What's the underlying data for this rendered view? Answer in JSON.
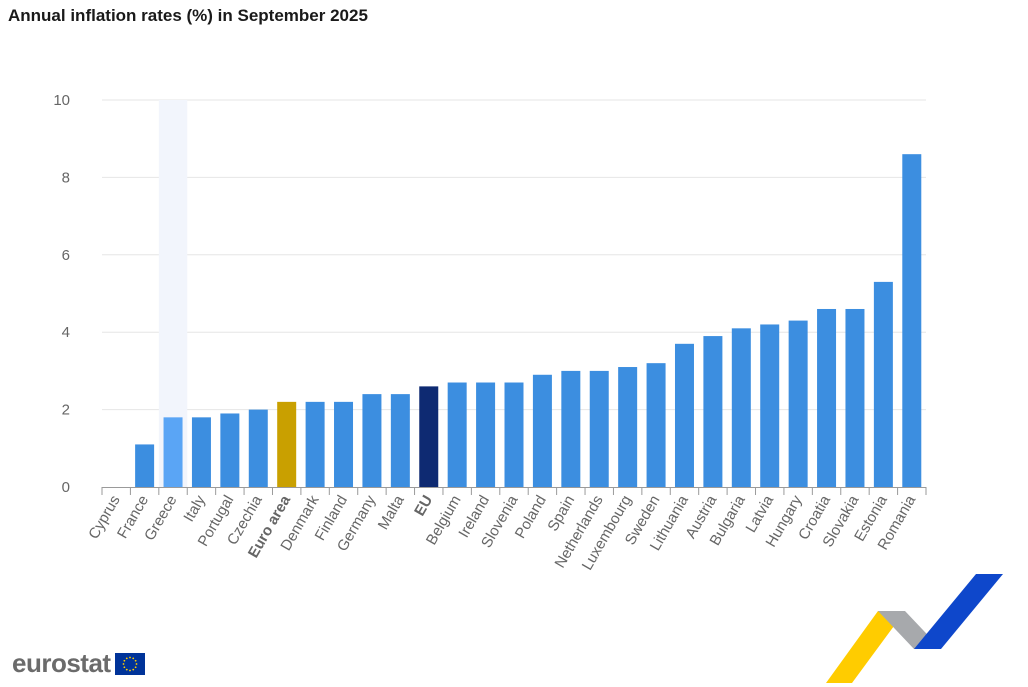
{
  "chart_data": {
    "type": "bar",
    "title": "Annual inflation rates (%) in September 2025",
    "xlabel": "",
    "ylabel": "",
    "ylim": [
      0,
      10
    ],
    "yticks": [
      0,
      2,
      4,
      6,
      8,
      10
    ],
    "grid": true,
    "categories": [
      "Cyprus",
      "France",
      "Greece",
      "Italy",
      "Portugal",
      "Czechia",
      "Euro area",
      "Denmark",
      "Finland",
      "Germany",
      "Malta",
      "EU",
      "Belgium",
      "Ireland",
      "Slovenia",
      "Poland",
      "Spain",
      "Netherlands",
      "Luxembourg",
      "Sweden",
      "Lithuania",
      "Austria",
      "Bulgaria",
      "Latvia",
      "Hungary",
      "Croatia",
      "Slovakia",
      "Estonia",
      "Romania"
    ],
    "values": [
      0.0,
      1.1,
      1.8,
      1.8,
      1.9,
      2.0,
      2.2,
      2.2,
      2.2,
      2.4,
      2.4,
      2.6,
      2.7,
      2.7,
      2.7,
      2.9,
      3.0,
      3.0,
      3.1,
      3.2,
      3.7,
      3.9,
      4.1,
      4.2,
      4.3,
      4.6,
      4.6,
      5.3,
      8.6
    ],
    "bold_categories": [
      "Euro area",
      "EU"
    ],
    "highlighted_category": "Greece",
    "colors": {
      "default": "#3c8ee0",
      "euro_area": "#c9a000",
      "eu": "#0e2a72",
      "highlight": "#5aa5f5",
      "highlight_band": "#f2f5fc",
      "grid": "#e6e6e6",
      "axis": "#9a9a9a"
    }
  },
  "branding": {
    "logo_text": "eurostat",
    "flag_color": "#003399",
    "star_color": "#ffcc00",
    "ribbon_yellow": "#ffcc00",
    "ribbon_grey": "#a7a9ac",
    "ribbon_blue": "#0e47cb"
  }
}
